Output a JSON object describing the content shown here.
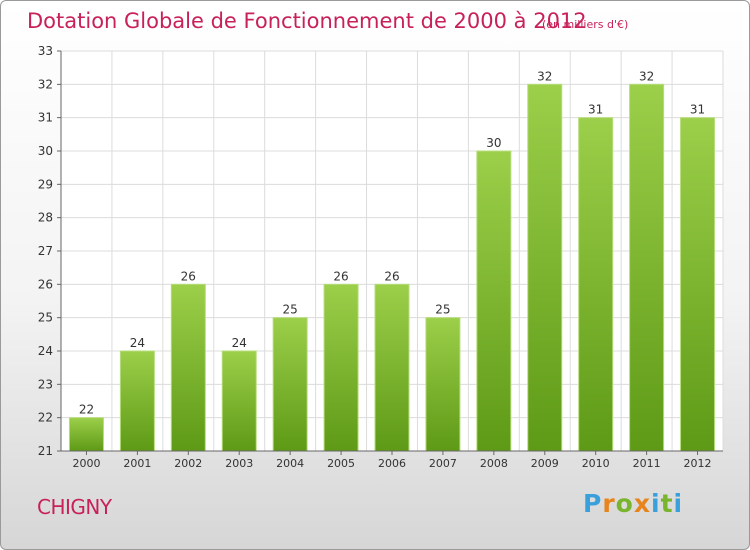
{
  "chart_data": {
    "type": "bar",
    "title": "Dotation Globale de Fonctionnement de 2000 à 2012",
    "subtitle": "(en milliers d'€)",
    "categories": [
      "2000",
      "2001",
      "2002",
      "2003",
      "2004",
      "2005",
      "2006",
      "2007",
      "2008",
      "2009",
      "2010",
      "2011",
      "2012"
    ],
    "values": [
      22,
      24,
      26,
      24,
      25,
      26,
      26,
      25,
      30,
      32,
      31,
      32,
      31
    ],
    "ylim": [
      21,
      33
    ],
    "yticks": [
      21,
      22,
      23,
      24,
      25,
      26,
      27,
      28,
      29,
      30,
      31,
      32,
      33
    ],
    "xlabel": "",
    "ylabel": "",
    "grid": true,
    "bar_color": "#7db82c"
  },
  "commune": "CHIGNY",
  "logo": {
    "letters": [
      "P",
      "r",
      "o",
      "x",
      "i",
      "t",
      "i"
    ],
    "colors": [
      "#3aa0dc",
      "#e8841c",
      "#78b42c",
      "#e8841c",
      "#3aa0dc",
      "#78b42c",
      "#3aa0dc"
    ]
  }
}
